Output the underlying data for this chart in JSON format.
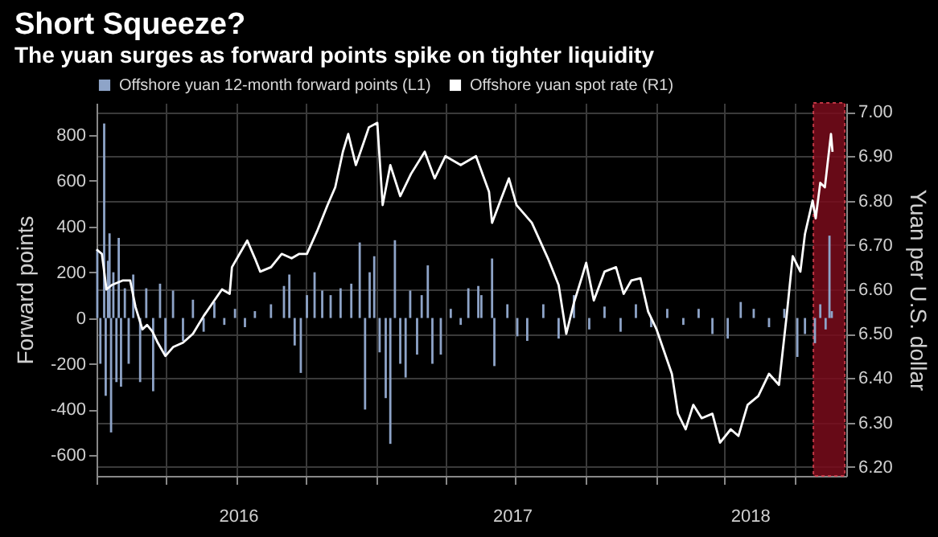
{
  "chart_data": {
    "type": "line",
    "title": "Short Squeeze?",
    "subtitle": "The yuan surges as forward points spike on tighter liquidity",
    "ylabel": "Forward points",
    "y2label": "Yuan per U.S. dollar",
    "legend": "top left",
    "grid": true,
    "xlim": [
      "2016-01-01",
      "2018-09-07"
    ],
    "xticks": [
      {
        "value": "2016-01-01",
        "label": null
      },
      {
        "value": "2016-04-01",
        "label": null
      },
      {
        "value": "2016-07-01",
        "label": null
      },
      {
        "value": "2016-07-04",
        "label": "2016"
      },
      {
        "value": "2016-10-01",
        "label": null
      },
      {
        "value": "2017-01-01",
        "label": null
      },
      {
        "value": "2017-04-01",
        "label": null
      },
      {
        "value": "2017-06-27",
        "label": "2017"
      },
      {
        "value": "2017-07-01",
        "label": null
      },
      {
        "value": "2017-10-01",
        "label": null
      },
      {
        "value": "2018-01-01",
        "label": null
      },
      {
        "value": "2018-04-01",
        "label": null
      },
      {
        "value": "2018-05-04",
        "label": "2018"
      },
      {
        "value": "2018-07-01",
        "label": null
      }
    ],
    "ylim": [
      -690,
      940
    ],
    "yticks": [
      -600,
      -400,
      -200,
      0,
      200,
      400,
      600,
      800
    ],
    "y2lim": [
      6.18,
      7.02
    ],
    "y2ticks": [
      {
        "value": 6.2,
        "label": "6.20"
      },
      {
        "value": 6.3,
        "label": "6.30"
      },
      {
        "value": 6.4,
        "label": "6.40"
      },
      {
        "value": 6.5,
        "label": "6.50"
      },
      {
        "value": 6.6,
        "label": "6.60"
      },
      {
        "value": 6.7,
        "label": "6.70"
      },
      {
        "value": 6.8,
        "label": "6.80"
      },
      {
        "value": 6.9,
        "label": "6.90"
      },
      {
        "value": 7,
        "label": "7.00"
      }
    ],
    "bands": [
      {
        "axis": "x",
        "from": "2018-07-26",
        "to": "2018-09-05",
        "color": "#7a0c1c"
      }
    ],
    "series": [
      {
        "name": "Offshore yuan 12-month forward points (L1)",
        "type": "bar",
        "color": "#8ea4c8",
        "x": [
          "2016-01-02",
          "2016-01-06",
          "2016-01-11",
          "2016-01-13",
          "2016-01-16",
          "2016-01-18",
          "2016-01-20",
          "2016-01-23",
          "2016-01-27",
          "2016-01-30",
          "2016-02-02",
          "2016-02-07",
          "2016-02-12",
          "2016-02-18",
          "2016-02-27",
          "2016-03-06",
          "2016-03-15",
          "2016-03-24",
          "2016-03-31",
          "2016-04-10",
          "2016-04-23",
          "2016-05-06",
          "2016-05-20",
          "2016-06-03",
          "2016-06-16",
          "2016-06-30",
          "2016-07-13",
          "2016-07-26",
          "2016-08-16",
          "2016-09-02",
          "2016-09-09",
          "2016-09-16",
          "2016-09-24",
          "2016-10-02",
          "2016-10-12",
          "2016-10-22",
          "2016-11-02",
          "2016-11-15",
          "2016-11-29",
          "2016-12-10",
          "2016-12-17",
          "2016-12-23",
          "2016-12-29",
          "2017-01-05",
          "2017-01-13",
          "2017-01-19",
          "2017-01-25",
          "2017-02-01",
          "2017-02-08",
          "2017-02-14",
          "2017-02-23",
          "2017-03-01",
          "2017-03-09",
          "2017-03-15",
          "2017-03-26",
          "2017-04-08",
          "2017-04-21",
          "2017-05-01",
          "2017-05-14",
          "2017-05-18",
          "2017-06-01",
          "2017-06-04",
          "2017-06-21",
          "2017-07-04",
          "2017-07-17",
          "2017-08-07",
          "2017-08-27",
          "2017-09-16",
          "2017-10-06",
          "2017-10-26",
          "2017-11-16",
          "2017-12-06",
          "2017-12-26",
          "2018-01-16",
          "2018-02-06",
          "2018-02-26",
          "2018-03-16",
          "2018-04-05",
          "2018-04-22",
          "2018-05-09",
          "2018-05-29",
          "2018-06-18",
          "2018-07-05",
          "2018-07-15",
          "2018-07-28",
          "2018-08-04",
          "2018-08-11",
          "2018-08-16",
          "2018-08-19"
        ],
        "values": [
          300,
          -200,
          850,
          -340,
          250,
          370,
          -500,
          200,
          -280,
          350,
          -300,
          130,
          -200,
          190,
          -280,
          130,
          -320,
          150,
          -160,
          120,
          -100,
          80,
          -60,
          70,
          -30,
          40,
          -40,
          30,
          60,
          140,
          190,
          -120,
          -240,
          100,
          200,
          120,
          100,
          130,
          150,
          330,
          -400,
          200,
          270,
          -150,
          -350,
          -550,
          340,
          -200,
          -260,
          120,
          -160,
          100,
          230,
          -200,
          -160,
          40,
          -30,
          130,
          140,
          100,
          260,
          -210,
          60,
          -80,
          -100,
          60,
          -90,
          100,
          -50,
          50,
          -60,
          60,
          -40,
          40,
          -30,
          40,
          -70,
          -90,
          70,
          40,
          -40,
          40,
          -170,
          -70,
          -110,
          60,
          -50,
          360,
          30
        ]
      },
      {
        "name": "Offshore yuan spot rate (R1)",
        "color": "#ffffff",
        "axis": "y2",
        "x": [
          "2016-01-01",
          "2016-01-08",
          "2016-01-14",
          "2016-01-21",
          "2016-02-04",
          "2016-02-14",
          "2016-02-21",
          "2016-03-01",
          "2016-03-07",
          "2016-03-14",
          "2016-03-21",
          "2016-03-31",
          "2016-04-10",
          "2016-04-23",
          "2016-05-06",
          "2016-05-20",
          "2016-06-03",
          "2016-06-13",
          "2016-06-23",
          "2016-06-26",
          "2016-07-06",
          "2016-07-16",
          "2016-07-26",
          "2016-08-02",
          "2016-08-16",
          "2016-08-30",
          "2016-09-12",
          "2016-09-22",
          "2016-10-02",
          "2016-10-15",
          "2016-10-29",
          "2016-11-08",
          "2016-11-18",
          "2016-11-25",
          "2016-12-05",
          "2016-12-15",
          "2016-12-22",
          "2017-01-02",
          "2017-01-09",
          "2017-01-19",
          "2017-02-01",
          "2017-02-15",
          "2017-03-05",
          "2017-03-18",
          "2017-04-01",
          "2017-04-21",
          "2017-05-11",
          "2017-05-28",
          "2017-06-01",
          "2017-06-23",
          "2017-07-03",
          "2017-07-23",
          "2017-08-13",
          "2017-08-27",
          "2017-09-06",
          "2017-09-16",
          "2017-09-26",
          "2017-10-02",
          "2017-10-12",
          "2017-10-26",
          "2017-11-10",
          "2017-11-20",
          "2017-11-30",
          "2017-12-12",
          "2017-12-22",
          "2018-01-02",
          "2018-01-22",
          "2018-01-30",
          "2018-02-09",
          "2018-02-19",
          "2018-03-02",
          "2018-03-16",
          "2018-03-26",
          "2018-04-09",
          "2018-04-19",
          "2018-05-01",
          "2018-05-15",
          "2018-05-29",
          "2018-06-11",
          "2018-06-21",
          "2018-06-29",
          "2018-07-09",
          "2018-07-15",
          "2018-07-25",
          "2018-07-29",
          "2018-08-04",
          "2018-08-10",
          "2018-08-18",
          "2018-08-20"
        ],
        "values": [
          6.69,
          6.68,
          6.6,
          6.61,
          6.62,
          6.62,
          6.56,
          6.51,
          6.52,
          6.505,
          6.48,
          6.45,
          6.47,
          6.48,
          6.5,
          6.54,
          6.575,
          6.6,
          6.59,
          6.65,
          6.68,
          6.71,
          6.67,
          6.64,
          6.65,
          6.68,
          6.67,
          6.68,
          6.68,
          6.73,
          6.79,
          6.83,
          6.91,
          6.95,
          6.88,
          6.93,
          6.965,
          6.975,
          6.79,
          6.88,
          6.81,
          6.86,
          6.91,
          6.85,
          6.9,
          6.88,
          6.9,
          6.82,
          6.75,
          6.85,
          6.79,
          6.75,
          6.67,
          6.61,
          6.5,
          6.57,
          6.625,
          6.66,
          6.575,
          6.64,
          6.65,
          6.59,
          6.62,
          6.625,
          6.55,
          6.51,
          6.41,
          6.32,
          6.285,
          6.34,
          6.31,
          6.32,
          6.255,
          6.285,
          6.27,
          6.34,
          6.36,
          6.41,
          6.385,
          6.54,
          6.675,
          6.64,
          6.725,
          6.8,
          6.76,
          6.84,
          6.83,
          6.95,
          6.91
        ]
      }
    ]
  }
}
